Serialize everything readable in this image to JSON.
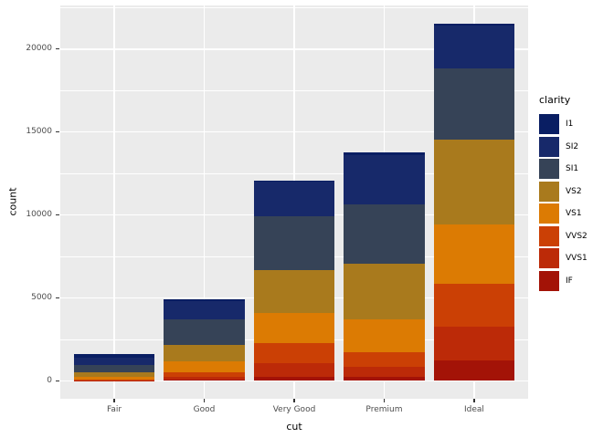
{
  "chart_data": {
    "type": "bar",
    "stacked": true,
    "xlabel": "cut",
    "ylabel": "count",
    "legend_title": "clarity",
    "legend_position": "right",
    "categories": [
      "Fair",
      "Good",
      "Very Good",
      "Premium",
      "Ideal"
    ],
    "series": [
      {
        "name": "I1",
        "color": "#091e63",
        "values": [
          210,
          96,
          84,
          205,
          146
        ]
      },
      {
        "name": "SI2",
        "color": "#17296a",
        "values": [
          466,
          1081,
          2100,
          2949,
          2598
        ]
      },
      {
        "name": "SI1",
        "color": "#364357",
        "values": [
          408,
          1560,
          3240,
          3575,
          4282
        ]
      },
      {
        "name": "VS2",
        "color": "#a97a1d",
        "values": [
          261,
          978,
          2591,
          3357,
          5071
        ]
      },
      {
        "name": "VS1",
        "color": "#dc7b03",
        "values": [
          170,
          648,
          1775,
          1989,
          3589
        ]
      },
      {
        "name": "VVS2",
        "color": "#cb4005",
        "values": [
          69,
          286,
          1235,
          870,
          2606
        ]
      },
      {
        "name": "VVS1",
        "color": "#bc2a08",
        "values": [
          17,
          186,
          789,
          616,
          2047
        ]
      },
      {
        "name": "IF",
        "color": "#a31307",
        "values": [
          9,
          71,
          268,
          230,
          1212
        ]
      }
    ],
    "bar_totals": [
      1610,
      4906,
      12082,
      13791,
      21551
    ],
    "ylim": [
      -1078,
      22629
    ],
    "yticks": [
      0,
      5000,
      10000,
      15000,
      20000
    ],
    "ytick_labels": [
      "0",
      "5000",
      "10000",
      "15000",
      "20000"
    ],
    "yticks_minor": [
      2500,
      7500,
      12500,
      17500,
      22500
    ],
    "grid": true,
    "panel_bg": "#ebebeb",
    "grid_color": "#ffffff",
    "tick_label_color": "#4d4d4d",
    "axis_title_color": "#000000"
  }
}
